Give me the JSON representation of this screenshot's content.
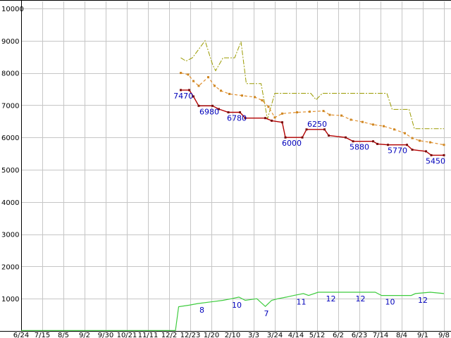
{
  "page": {
    "background": "#ffffff"
  },
  "chart_data": {
    "type": "line",
    "title": "",
    "grid_color": "#c6c6c6",
    "axis_color": "#000000",
    "label_color": "#000000",
    "annotation_color": "#0000bb",
    "x_axis": {
      "unit": "tick-index",
      "gridlines": true,
      "tick_labels": [
        "6/24",
        "7/15",
        "8/5",
        "9/2",
        "9/30",
        "10/21",
        "11/11",
        "12/2",
        "12/23",
        "1/20",
        "2/10",
        "3/3",
        "3/24",
        "4/14",
        "5/12",
        "6/2",
        "6/23",
        "7/14",
        "8/4",
        "9/1",
        "9/8"
      ]
    },
    "y_axis": {
      "min": 0,
      "max": 10000,
      "tick_step": 1000,
      "gridlines": true,
      "tick_values": [
        1000,
        2000,
        3000,
        4000,
        5000,
        6000,
        7000,
        8000,
        9000,
        10000
      ],
      "tick_labels": [
        "1000",
        "2000",
        "3000",
        "4000",
        "5000",
        "6000",
        "7000",
        "8000",
        "9000",
        "10000"
      ]
    },
    "series": [
      {
        "id": "olive-dashdot-line",
        "color": "#9a9a00",
        "width": 1,
        "dash": "7 2 2 2",
        "marker": "none",
        "marker_color": "",
        "points": [
          [
            7.55,
            8470
          ],
          [
            7.8,
            8370
          ],
          [
            8.1,
            8470
          ],
          [
            8.7,
            9000
          ],
          [
            9.05,
            8270
          ],
          [
            9.2,
            8070
          ],
          [
            9.55,
            8470
          ],
          [
            10.1,
            8470
          ],
          [
            10.4,
            8970
          ],
          [
            10.65,
            7670
          ],
          [
            11.35,
            7670
          ],
          [
            11.65,
            6570
          ],
          [
            12.0,
            7370
          ],
          [
            13.7,
            7370
          ],
          [
            13.95,
            7170
          ],
          [
            14.25,
            7370
          ],
          [
            17.3,
            7370
          ],
          [
            17.55,
            6870
          ],
          [
            18.35,
            6870
          ],
          [
            18.6,
            6270
          ],
          [
            20.0,
            6270
          ]
        ]
      },
      {
        "id": "orange-dashed-line",
        "color": "#e09030",
        "width": 1.2,
        "dash": "4 3",
        "marker": "square",
        "marker_color": "#cf8722",
        "points": [
          [
            7.55,
            8000
          ],
          [
            7.9,
            7950
          ],
          [
            8.15,
            7750
          ],
          [
            8.4,
            7600
          ],
          [
            8.85,
            7870
          ],
          [
            9.15,
            7600
          ],
          [
            9.45,
            7450
          ],
          [
            9.85,
            7350
          ],
          [
            10.45,
            7300
          ],
          [
            11.05,
            7250
          ],
          [
            11.4,
            7150
          ],
          [
            11.7,
            6950
          ],
          [
            12.0,
            6620
          ],
          [
            12.35,
            6740
          ],
          [
            13.05,
            6780
          ],
          [
            13.65,
            6800
          ],
          [
            14.3,
            6820
          ],
          [
            14.6,
            6700
          ],
          [
            15.15,
            6680
          ],
          [
            15.6,
            6550
          ],
          [
            16.15,
            6480
          ],
          [
            16.65,
            6400
          ],
          [
            17.15,
            6350
          ],
          [
            17.65,
            6250
          ],
          [
            18.15,
            6130
          ],
          [
            18.5,
            5980
          ],
          [
            18.85,
            5900
          ],
          [
            19.35,
            5850
          ],
          [
            20.0,
            5770
          ]
        ]
      },
      {
        "id": "green-line",
        "color": "#3ecc3e",
        "width": 1.2,
        "dash": "",
        "marker": "none",
        "marker_color": "",
        "points": [
          [
            0,
            15
          ],
          [
            7.3,
            15
          ],
          [
            7.45,
            750
          ],
          [
            7.95,
            800
          ],
          [
            8.35,
            850
          ],
          [
            8.95,
            900
          ],
          [
            9.55,
            950
          ],
          [
            9.95,
            1000
          ],
          [
            10.3,
            1050
          ],
          [
            10.6,
            950
          ],
          [
            11.15,
            1000
          ],
          [
            11.55,
            760
          ],
          [
            11.85,
            950
          ],
          [
            12.15,
            1000
          ],
          [
            12.55,
            1050
          ],
          [
            12.9,
            1100
          ],
          [
            13.35,
            1160
          ],
          [
            13.6,
            1100
          ],
          [
            14.05,
            1200
          ],
          [
            16.75,
            1200
          ],
          [
            17.05,
            1100
          ],
          [
            18.45,
            1100
          ],
          [
            18.65,
            1160
          ],
          [
            19.35,
            1200
          ],
          [
            20.0,
            1160
          ]
        ]
      },
      {
        "id": "red-marker-line",
        "color": "#b30000",
        "width": 1.4,
        "dash": "",
        "marker": "square",
        "marker_color": "#7a0b0b",
        "points": [
          [
            7.55,
            7470
          ],
          [
            7.95,
            7470
          ],
          [
            8.15,
            7270
          ],
          [
            8.4,
            6980
          ],
          [
            9.05,
            6980
          ],
          [
            9.35,
            6880
          ],
          [
            9.8,
            6780
          ],
          [
            10.35,
            6780
          ],
          [
            10.6,
            6600
          ],
          [
            11.55,
            6600
          ],
          [
            11.85,
            6520
          ],
          [
            12.35,
            6470
          ],
          [
            12.5,
            6000
          ],
          [
            13.3,
            6000
          ],
          [
            13.5,
            6250
          ],
          [
            14.35,
            6250
          ],
          [
            14.55,
            6060
          ],
          [
            15.35,
            6000
          ],
          [
            15.7,
            5880
          ],
          [
            16.65,
            5880
          ],
          [
            16.85,
            5800
          ],
          [
            17.35,
            5770
          ],
          [
            18.25,
            5770
          ],
          [
            18.5,
            5620
          ],
          [
            19.15,
            5570
          ],
          [
            19.4,
            5450
          ],
          [
            20.0,
            5450
          ]
        ]
      }
    ],
    "annotations": [
      {
        "group": "price-labels",
        "items": [
          {
            "text": "7470",
            "t": 7.67,
            "v": 7470,
            "dy": 12
          },
          {
            "text": "6980",
            "t": 8.9,
            "v": 6980,
            "dy": 12
          },
          {
            "text": "6780",
            "t": 10.2,
            "v": 6780,
            "dy": 12
          },
          {
            "text": "6000",
            "t": 12.8,
            "v": 6000,
            "dy": 12
          },
          {
            "text": "6250",
            "t": 14.0,
            "v": 6250,
            "dy": -4
          },
          {
            "text": "5880",
            "t": 16.0,
            "v": 5880,
            "dy": 12
          },
          {
            "text": "5770",
            "t": 17.8,
            "v": 5770,
            "dy": 12
          },
          {
            "text": "5450",
            "t": 19.6,
            "v": 5450,
            "dy": 12
          }
        ]
      },
      {
        "group": "count-labels",
        "items": [
          {
            "text": "8",
            "t": 8.55,
            "v": 850,
            "dy": 13
          },
          {
            "text": "10",
            "t": 10.2,
            "v": 1000,
            "dy": 13
          },
          {
            "text": "7",
            "t": 11.6,
            "v": 760,
            "dy": 14
          },
          {
            "text": "11",
            "t": 13.25,
            "v": 1100,
            "dy": 13
          },
          {
            "text": "12",
            "t": 14.65,
            "v": 1200,
            "dy": 13
          },
          {
            "text": "12",
            "t": 16.05,
            "v": 1200,
            "dy": 13
          },
          {
            "text": "10",
            "t": 17.45,
            "v": 1100,
            "dy": 13
          },
          {
            "text": "12",
            "t": 19.0,
            "v": 1160,
            "dy": 13
          }
        ]
      }
    ]
  }
}
